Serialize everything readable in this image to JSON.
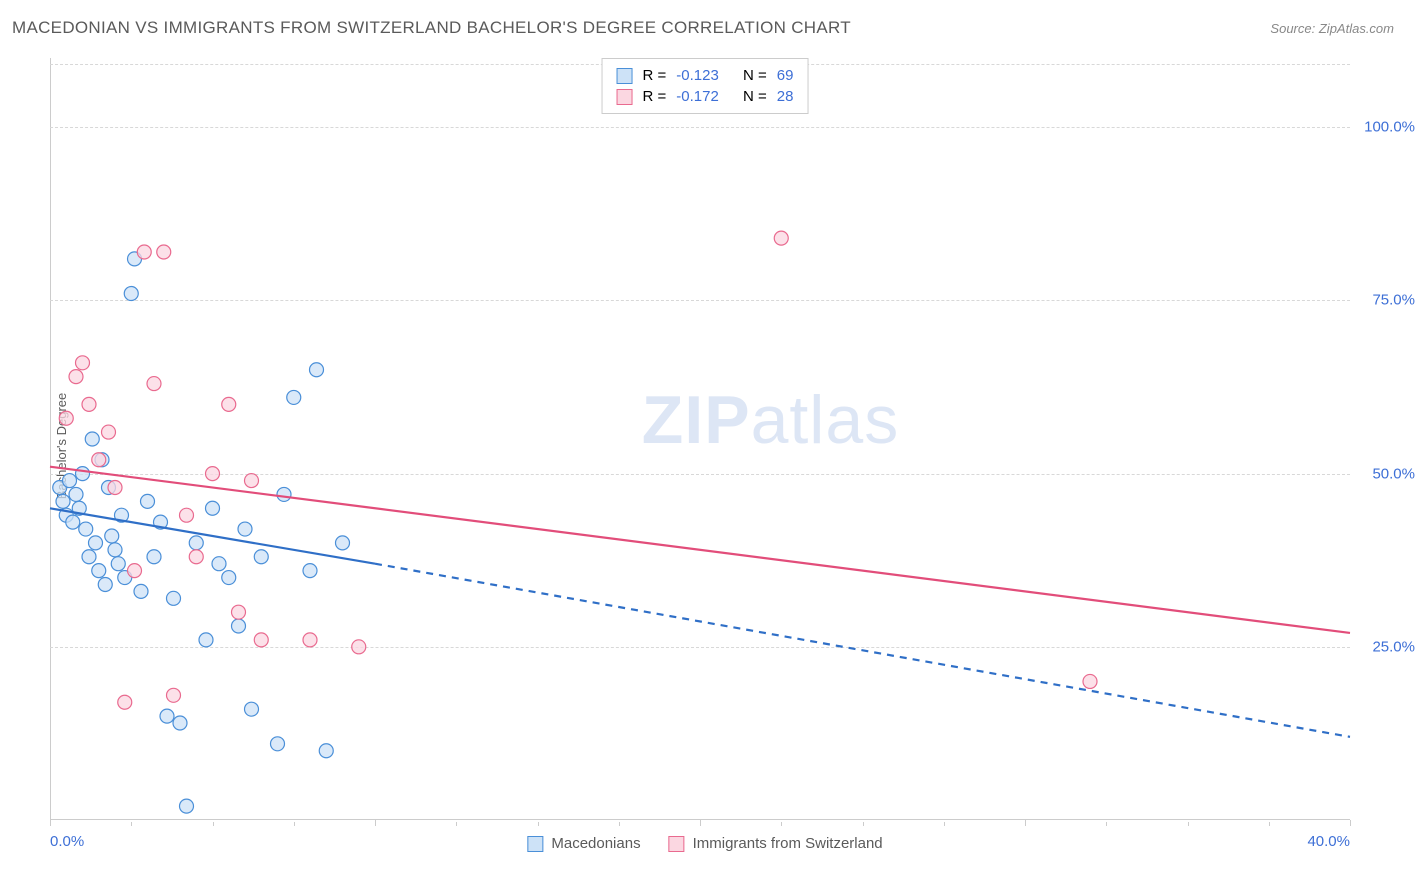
{
  "header": {
    "title": "MACEDONIAN VS IMMIGRANTS FROM SWITZERLAND BACHELOR'S DEGREE CORRELATION CHART",
    "source_label": "Source:",
    "source_value": "ZipAtlas.com"
  },
  "y_axis": {
    "label": "Bachelor's Degree"
  },
  "watermark": {
    "part1": "ZIP",
    "part2": "atlas"
  },
  "chart": {
    "type": "scatter",
    "background_color": "#ffffff",
    "grid_color": "#d8d8d8",
    "axis_color": "#cccccc",
    "tick_label_color": "#3d6fd6",
    "text_color": "#5a5a5a",
    "xlim": [
      0,
      40
    ],
    "ylim": [
      0,
      110
    ],
    "y_ticks": [
      25,
      50,
      75,
      100
    ],
    "y_tick_labels": [
      "25.0%",
      "50.0%",
      "75.0%",
      "100.0%"
    ],
    "x_ticks": [
      0,
      10,
      20,
      30,
      40
    ],
    "x_tick_labels_shown": {
      "0": "0.0%",
      "40": "40.0%"
    },
    "x_minor_ticks": [
      2.5,
      5,
      7.5,
      12.5,
      15,
      17.5,
      22.5,
      25,
      27.5,
      32.5,
      35,
      37.5
    ],
    "marker_radius": 7,
    "marker_stroke_width": 1.2,
    "line_width": 2.2
  },
  "series": {
    "a": {
      "label": "Macedonians",
      "fill": "#cde2f7",
      "stroke": "#4a8fd8",
      "line_color": "#2f6fc7",
      "R": "-0.123",
      "N": "69",
      "trend": {
        "x1": 0,
        "y1": 45,
        "x2_solid": 10,
        "y2_solid": 37,
        "x2": 40,
        "y2": 12,
        "dash_after": 10
      },
      "points": [
        [
          0.3,
          48
        ],
        [
          0.4,
          46
        ],
        [
          0.5,
          44
        ],
        [
          0.6,
          49
        ],
        [
          0.7,
          43
        ],
        [
          0.8,
          47
        ],
        [
          0.9,
          45
        ],
        [
          1.0,
          50
        ],
        [
          1.1,
          42
        ],
        [
          1.2,
          38
        ],
        [
          1.3,
          55
        ],
        [
          1.4,
          40
        ],
        [
          1.5,
          36
        ],
        [
          1.6,
          52
        ],
        [
          1.7,
          34
        ],
        [
          1.8,
          48
        ],
        [
          1.9,
          41
        ],
        [
          2.0,
          39
        ],
        [
          2.1,
          37
        ],
        [
          2.2,
          44
        ],
        [
          2.3,
          35
        ],
        [
          2.5,
          76
        ],
        [
          2.6,
          81
        ],
        [
          2.8,
          33
        ],
        [
          3.0,
          46
        ],
        [
          3.2,
          38
        ],
        [
          3.4,
          43
        ],
        [
          3.6,
          15
        ],
        [
          3.8,
          32
        ],
        [
          4.0,
          14
        ],
        [
          4.2,
          2
        ],
        [
          4.5,
          40
        ],
        [
          4.8,
          26
        ],
        [
          5.0,
          45
        ],
        [
          5.2,
          37
        ],
        [
          5.5,
          35
        ],
        [
          5.8,
          28
        ],
        [
          6.0,
          42
        ],
        [
          6.2,
          16
        ],
        [
          6.5,
          38
        ],
        [
          7.0,
          11
        ],
        [
          7.2,
          47
        ],
        [
          7.5,
          61
        ],
        [
          8.0,
          36
        ],
        [
          8.2,
          65
        ],
        [
          8.5,
          10
        ],
        [
          9.0,
          40
        ]
      ]
    },
    "b": {
      "label": "Immigrants from Switzerland",
      "fill": "#fbd7e1",
      "stroke": "#e96a8f",
      "line_color": "#e24d7a",
      "R": "-0.172",
      "N": "28",
      "trend": {
        "x1": 0,
        "y1": 51,
        "x2": 40,
        "y2": 27
      },
      "points": [
        [
          0.5,
          58
        ],
        [
          0.8,
          64
        ],
        [
          1.0,
          66
        ],
        [
          1.2,
          60
        ],
        [
          1.5,
          52
        ],
        [
          1.8,
          56
        ],
        [
          2.0,
          48
        ],
        [
          2.3,
          17
        ],
        [
          2.6,
          36
        ],
        [
          2.9,
          82
        ],
        [
          3.2,
          63
        ],
        [
          3.5,
          82
        ],
        [
          3.8,
          18
        ],
        [
          4.2,
          44
        ],
        [
          4.5,
          38
        ],
        [
          5.0,
          50
        ],
        [
          5.5,
          60
        ],
        [
          5.8,
          30
        ],
        [
          6.2,
          49
        ],
        [
          6.5,
          26
        ],
        [
          8.0,
          26
        ],
        [
          9.5,
          25
        ],
        [
          22.5,
          84
        ],
        [
          32.0,
          20
        ]
      ]
    }
  },
  "legend_top": {
    "R_label": "R =",
    "N_label": "N ="
  }
}
